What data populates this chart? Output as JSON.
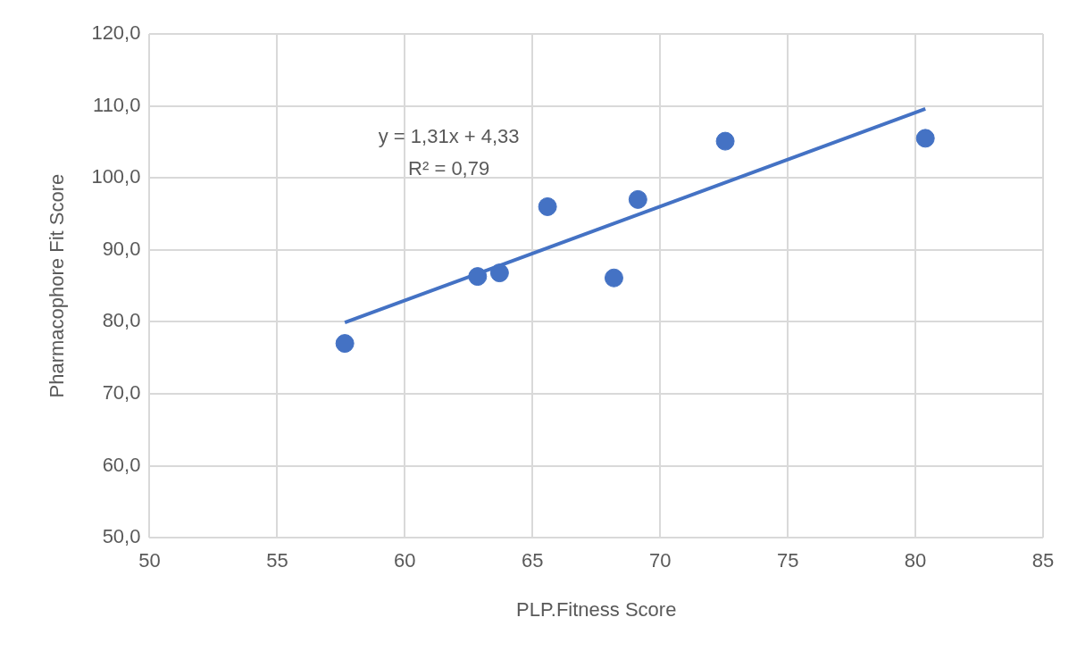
{
  "chart_data": {
    "type": "scatter",
    "xlabel": "PLP.Fitness Score",
    "ylabel": "Pharmacophore Fit Score",
    "series": [
      {
        "color": "#4472c4",
        "marker": "circle",
        "x": [
          57.65,
          62.85,
          63.71,
          65.59,
          68.19,
          69.13,
          72.55,
          80.39
        ],
        "values": [
          77.0,
          86.3,
          86.8,
          96.0,
          86.1,
          97.0,
          105.1,
          105.5
        ]
      },
      {
        "type": "line",
        "color": "#4472c4",
        "marker": "none",
        "x": [
          57.65,
          80.39
        ],
        "values": [
          79.9,
          109.6
        ]
      }
    ],
    "xlim": [
      50,
      85
    ],
    "xticks": [
      50,
      55,
      60,
      65,
      70,
      75,
      80,
      85
    ],
    "ylim": [
      50,
      120
    ],
    "yticks": [
      {
        "value": 50,
        "label": "50,0"
      },
      {
        "value": 60,
        "label": "60,0"
      },
      {
        "value": 70,
        "label": "70,0"
      },
      {
        "value": 80,
        "label": "80,0"
      },
      {
        "value": 90,
        "label": "90,0"
      },
      {
        "value": 100,
        "label": "100,0"
      },
      {
        "value": 110,
        "label": "110,0"
      },
      {
        "value": 120,
        "label": "120,0"
      }
    ],
    "annotations": [
      "y = 1,31x + 4,33",
      "R² = 0,79"
    ],
    "grid": true,
    "legend": false
  }
}
